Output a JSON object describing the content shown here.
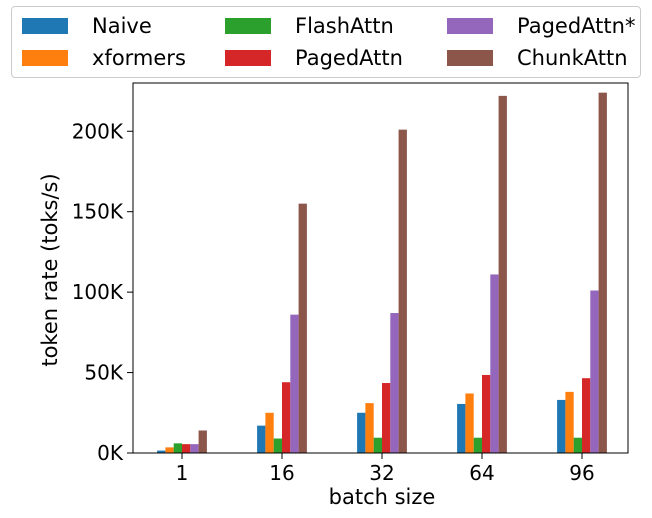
{
  "chart_data": {
    "type": "bar",
    "xlabel": "batch size",
    "ylabel": "token rate (toks/s)",
    "categories": [
      "1",
      "16",
      "32",
      "64",
      "96"
    ],
    "ylim": [
      0,
      230000
    ],
    "yticks": [
      0,
      50000,
      100000,
      150000,
      200000
    ],
    "ytick_labels": [
      "0K",
      "50K",
      "100K",
      "150K",
      "200K"
    ],
    "legend_position": "top (above plot, 3 columns)",
    "series": [
      {
        "name": "Naive",
        "color": "#1f77b4",
        "values": [
          1500,
          17000,
          25000,
          30500,
          33000
        ]
      },
      {
        "name": "xformers",
        "color": "#ff7f0e",
        "values": [
          3500,
          25000,
          31000,
          37000,
          38000
        ]
      },
      {
        "name": "FlashAttn",
        "color": "#2ca02c",
        "values": [
          6000,
          9000,
          9500,
          9500,
          9500
        ]
      },
      {
        "name": "PagedAttn",
        "color": "#d62728",
        "values": [
          5500,
          44000,
          43500,
          48500,
          46500
        ]
      },
      {
        "name": "PagedAttn*",
        "color": "#9467bd",
        "values": [
          5500,
          86000,
          87000,
          111000,
          101000
        ]
      },
      {
        "name": "ChunkAttn",
        "color": "#8c564b",
        "values": [
          14000,
          155000,
          201000,
          222000,
          224000
        ]
      }
    ]
  }
}
